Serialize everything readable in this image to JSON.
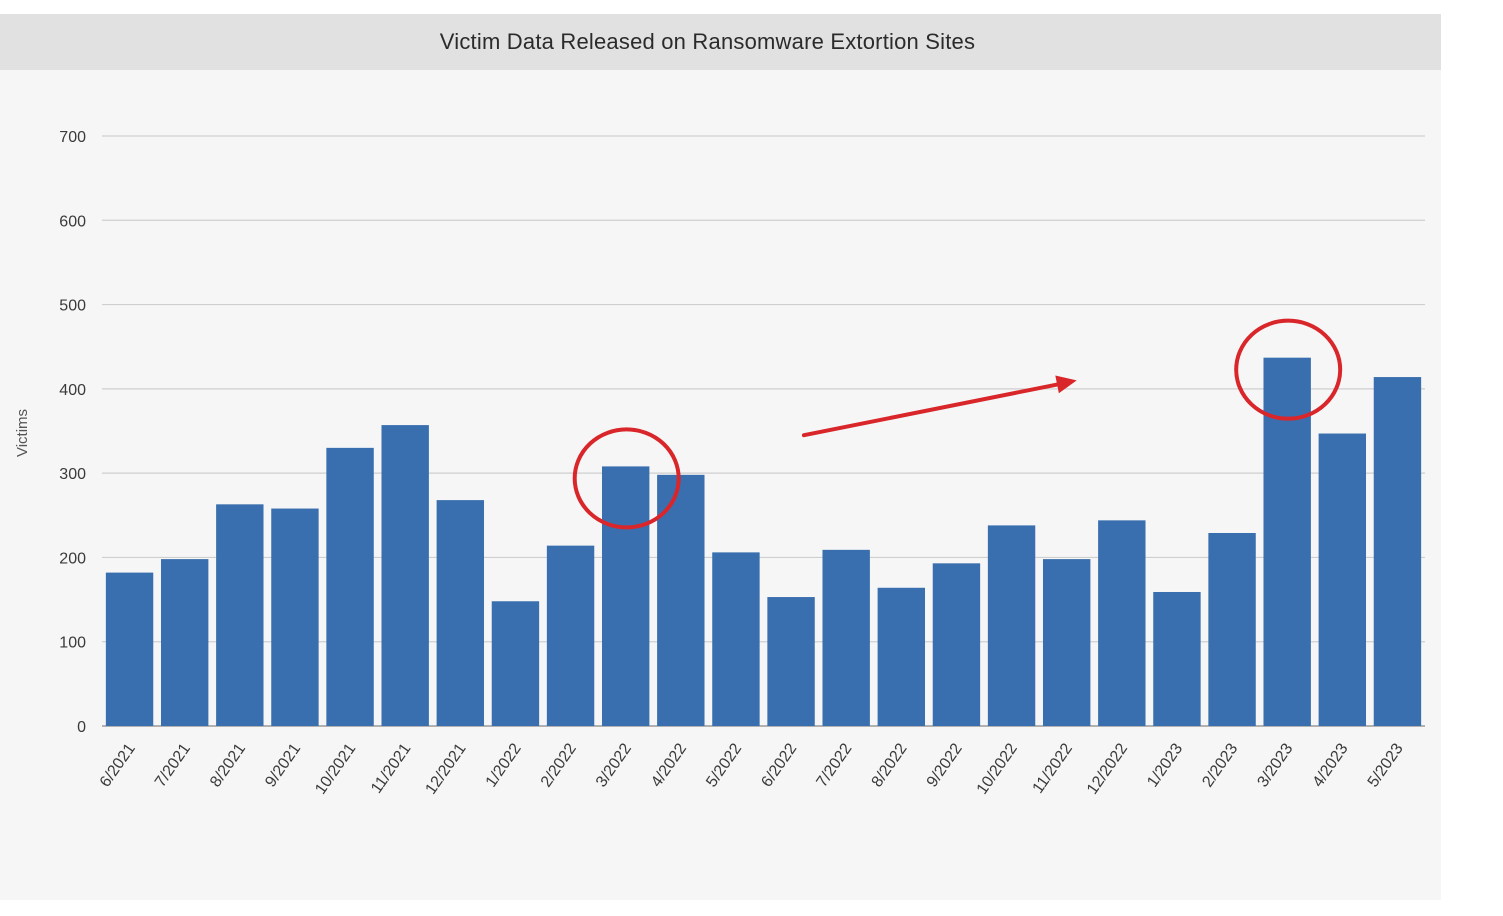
{
  "chart_data": {
    "type": "bar",
    "title": "Victim Data Released on Ransomware Extortion Sites",
    "xlabel": "",
    "ylabel": "Victims",
    "ylim": [
      0,
      700
    ],
    "yticks": [
      "0",
      "100",
      "200",
      "300",
      "400",
      "500",
      "600",
      "700"
    ],
    "categories": [
      "6/2021",
      "7/2021",
      "8/2021",
      "9/2021",
      "10/2021",
      "11/2021",
      "12/2021",
      "1/2022",
      "2/2022",
      "3/2022",
      "4/2022",
      "5/2022",
      "6/2022",
      "7/2022",
      "8/2022",
      "9/2022",
      "10/2022",
      "11/2022",
      "12/2022",
      "1/2023",
      "2/2023",
      "3/2023",
      "4/2023",
      "5/2023"
    ],
    "values": [
      182,
      198,
      263,
      258,
      330,
      357,
      268,
      148,
      214,
      308,
      298,
      206,
      153,
      209,
      164,
      193,
      238,
      198,
      244,
      159,
      229,
      437,
      347,
      414
    ],
    "grid": true,
    "legend": "none",
    "bar_color": "#3a6faf",
    "annotations": {
      "circled_categories": [
        "3/2022",
        "3/2023"
      ],
      "arrow": "upward trend from 5/2022 toward 11/2022",
      "annotation_color": "#d9262a"
    }
  }
}
